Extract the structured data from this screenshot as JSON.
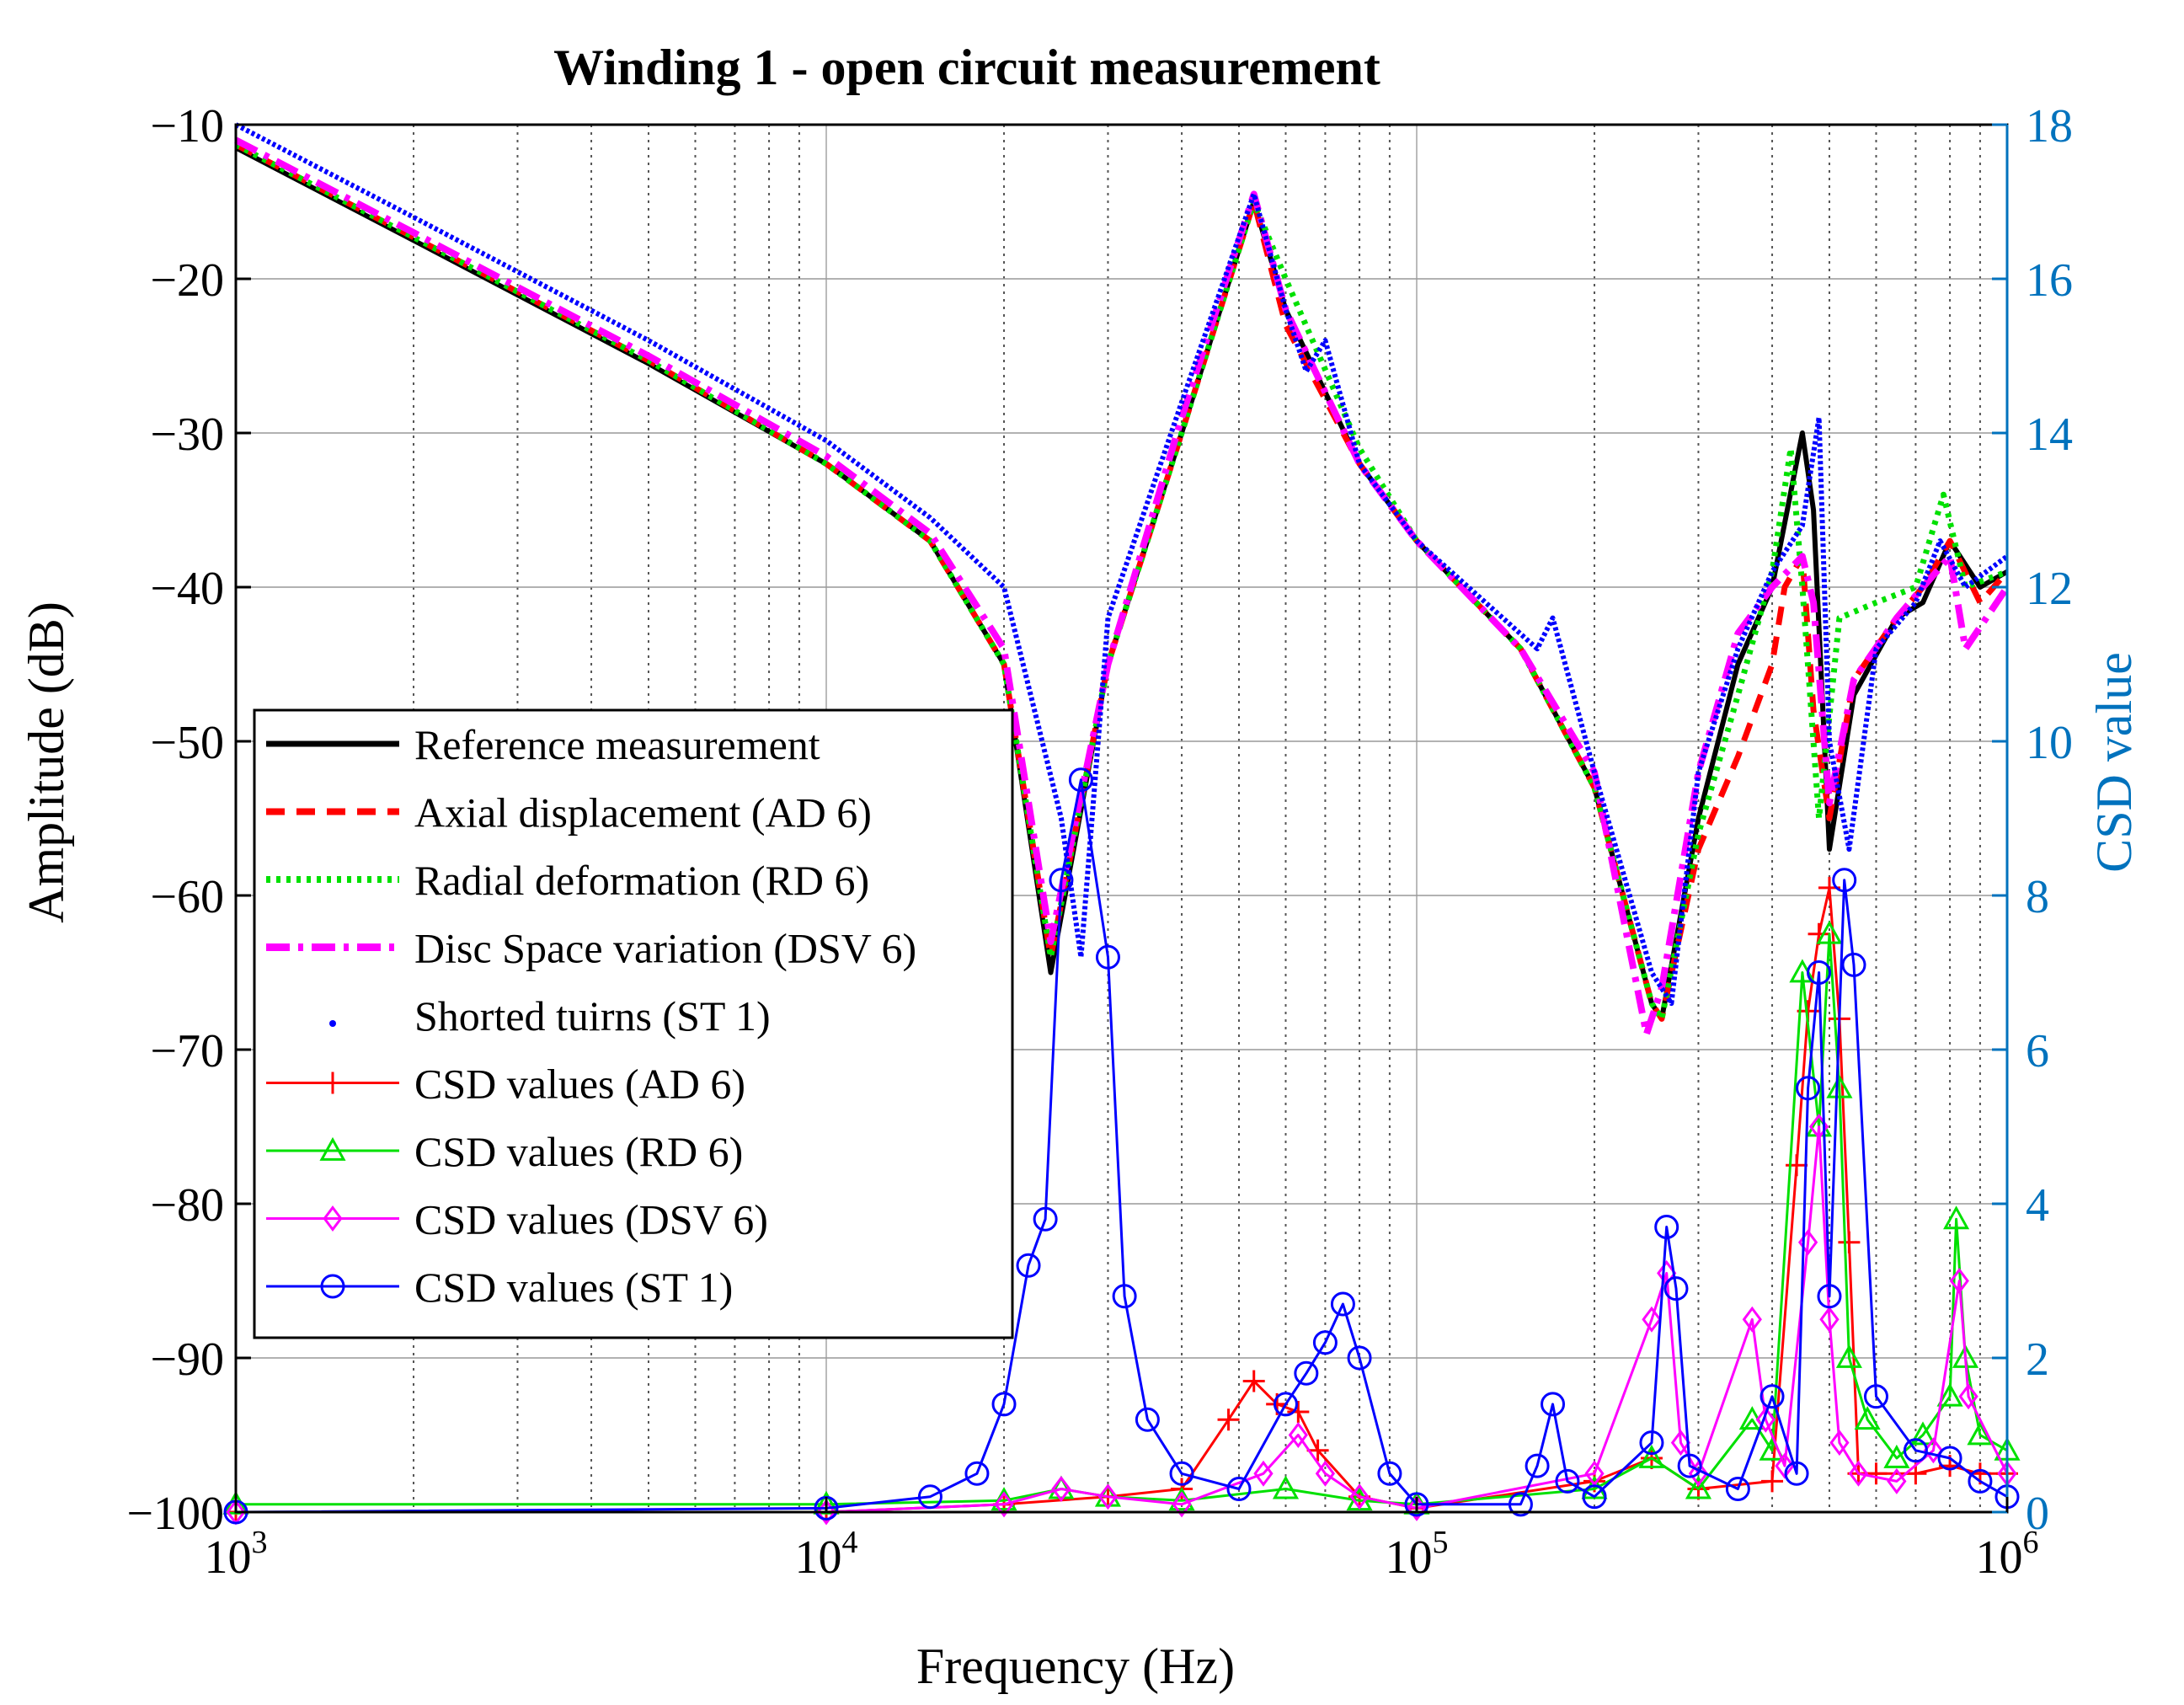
{
  "chart_data": {
    "type": "line",
    "title": "Winding 1 - open circuit measurement",
    "xlabel": "Frequency (Hz)",
    "ylabel_left": "Amplitude (dB)",
    "ylabel_right": "CSD value",
    "xscale": "log",
    "xlim": [
      1000,
      1000000
    ],
    "ylim_left": [
      -100,
      -10
    ],
    "ylim_right": [
      0,
      18
    ],
    "x_ticks": [
      {
        "value": 1000,
        "base": "10",
        "exp": "3"
      },
      {
        "value": 10000,
        "base": "10",
        "exp": "4"
      },
      {
        "value": 100000,
        "base": "10",
        "exp": "5"
      },
      {
        "value": 1000000,
        "base": "10",
        "exp": "6"
      }
    ],
    "y_ticks_left": [
      "−10",
      "−20",
      "−30",
      "−40",
      "−50",
      "−60",
      "−70",
      "−80",
      "−90",
      "−100"
    ],
    "y_tick_values_left": [
      -10,
      -20,
      -30,
      -40,
      -50,
      -60,
      -70,
      -80,
      -90,
      -100
    ],
    "y_ticks_right": [
      "18",
      "16",
      "14",
      "12",
      "10",
      "8",
      "6",
      "4",
      "2",
      "0"
    ],
    "y_tick_values_right": [
      18,
      16,
      14,
      12,
      10,
      8,
      6,
      4,
      2,
      0
    ],
    "colors": {
      "black": "#000000",
      "red": "#ff0000",
      "green": "#00e000",
      "magenta": "#ff00ff",
      "blue": "#0000ff",
      "right_axis": "#0072bd"
    },
    "legend": {
      "position": "lower-left",
      "entries": [
        "Reference measurement",
        "Axial displacement (AD 6)",
        "Radial deformation (RD 6)",
        "Disc Space variation (DSV 6)",
        "Shorted tuirns (ST 1)",
        "CSD values (AD 6)",
        "CSD values (RD 6)",
        "CSD values (DSV 6)",
        "CSD values (ST 1)"
      ]
    },
    "series": [
      {
        "name": "Reference measurement",
        "axis": "left",
        "style": "solid",
        "x": [
          1000,
          2000,
          5000,
          10000,
          15000,
          20000,
          24000,
          30000,
          40000,
          53000,
          60000,
          80000,
          100000,
          150000,
          200000,
          250000,
          260000,
          300000,
          350000,
          400000,
          450000,
          470000,
          500000,
          550000,
          650000,
          720000,
          800000,
          900000,
          1000000
        ],
        "y": [
          -11.5,
          -17.5,
          -25.5,
          -32,
          -37,
          -45,
          -65,
          -45,
          -30,
          -15,
          -22,
          -32,
          -37,
          -44,
          -53,
          -67,
          -68,
          -55,
          -45,
          -40,
          -30,
          -35,
          -57,
          -47,
          -42,
          -41,
          -37,
          -40,
          -39
        ]
      },
      {
        "name": "Axial displacement (AD 6)",
        "axis": "left",
        "style": "dashed",
        "x": [
          1000,
          2000,
          5000,
          10000,
          15000,
          20000,
          24000,
          30000,
          40000,
          53000,
          60000,
          80000,
          100000,
          150000,
          200000,
          250000,
          260000,
          300000,
          350000,
          400000,
          420000,
          450000,
          470000,
          500000,
          550000,
          650000,
          720000,
          800000,
          900000,
          1000000
        ],
        "y": [
          -11.3,
          -17.3,
          -25.3,
          -32,
          -37,
          -45,
          -64,
          -45,
          -30,
          -15,
          -23,
          -32,
          -37,
          -44,
          -53,
          -67,
          -68,
          -57,
          -51,
          -45,
          -40,
          -38,
          -48,
          -55,
          -46,
          -42,
          -40,
          -37,
          -41,
          -39
        ]
      },
      {
        "name": "Radial deformation (RD 6)",
        "axis": "left",
        "style": "dotted",
        "x": [
          1000,
          2000,
          5000,
          10000,
          15000,
          20000,
          24000,
          30000,
          40000,
          53000,
          60000,
          80000,
          100000,
          150000,
          200000,
          250000,
          260000,
          300000,
          350000,
          400000,
          430000,
          450000,
          480000,
          520000,
          600000,
          700000,
          780000,
          850000,
          1000000
        ],
        "y": [
          -11.3,
          -17.3,
          -25.3,
          -32,
          -37,
          -45,
          -64,
          -45,
          -30,
          -15,
          -20,
          -31,
          -37,
          -44,
          -53,
          -67,
          -68,
          -56,
          -47,
          -39,
          -31,
          -40,
          -55,
          -42,
          -41,
          -40,
          -34,
          -40,
          -39
        ]
      },
      {
        "name": "Disc Space variation (DSV 6)",
        "axis": "left",
        "style": "dashdot",
        "x": [
          1000,
          2000,
          5000,
          10000,
          15000,
          20000,
          24000,
          30000,
          40000,
          53000,
          60000,
          80000,
          100000,
          150000,
          200000,
          245000,
          260000,
          300000,
          350000,
          400000,
          450000,
          470000,
          500000,
          550000,
          650000,
          720000,
          800000,
          850000,
          1000000
        ],
        "y": [
          -11,
          -17,
          -25,
          -31.5,
          -36.5,
          -44,
          -63,
          -45,
          -29,
          -14.5,
          -22,
          -32,
          -37,
          -44,
          -52,
          -69,
          -66,
          -52,
          -43,
          -40,
          -38,
          -41,
          -54,
          -46,
          -42,
          -40,
          -38,
          -44,
          -40
        ]
      },
      {
        "name": "Shorted tuirns (ST 1)",
        "axis": "left",
        "style": "points",
        "x": [
          1000,
          2000,
          5000,
          10000,
          15000,
          20000,
          25000,
          27000,
          30000,
          40000,
          53000,
          60000,
          65000,
          70000,
          80000,
          100000,
          160000,
          170000,
          200000,
          250000,
          270000,
          300000,
          350000,
          400000,
          450000,
          480000,
          500000,
          540000,
          600000,
          700000,
          770000,
          850000,
          1000000
        ],
        "y": [
          -10,
          -16,
          -24,
          -30.5,
          -35.5,
          -40,
          -55,
          -64,
          -42,
          -28,
          -14.5,
          -22,
          -26,
          -24,
          -32,
          -37,
          -44,
          -42,
          -52,
          -65,
          -67,
          -52,
          -44,
          -39,
          -36,
          -29,
          -50,
          -57,
          -44,
          -41,
          -37,
          -40,
          -38
        ]
      },
      {
        "name": "CSD values (AD 6)",
        "axis": "right",
        "marker": "plus",
        "x": [
          1000,
          10000,
          20000,
          30000,
          40000,
          48000,
          53000,
          58000,
          63000,
          68000,
          80000,
          100000,
          200000,
          250000,
          300000,
          400000,
          440000,
          460000,
          480000,
          500000,
          520000,
          540000,
          560000,
          600000,
          700000,
          800000,
          900000,
          1000000
        ],
        "y": [
          0,
          0,
          0.1,
          0.2,
          0.3,
          1.2,
          1.7,
          1.4,
          1.3,
          0.8,
          0.2,
          0.05,
          0.4,
          0.7,
          0.3,
          0.4,
          4.5,
          6.5,
          7.5,
          8.1,
          6.4,
          3.5,
          0.5,
          0.5,
          0.5,
          0.6,
          0.5,
          0.5
        ]
      },
      {
        "name": "CSD values (RD 6)",
        "axis": "right",
        "marker": "triangle",
        "x": [
          1000,
          10000,
          20000,
          25000,
          30000,
          40000,
          60000,
          80000,
          100000,
          200000,
          250000,
          300000,
          370000,
          400000,
          450000,
          480000,
          500000,
          520000,
          540000,
          580000,
          650000,
          720000,
          800000,
          820000,
          850000,
          900000,
          1000000
        ],
        "y": [
          0.1,
          0.1,
          0.15,
          0.3,
          0.2,
          0.15,
          0.3,
          0.15,
          0.1,
          0.3,
          0.7,
          0.3,
          1.2,
          0.8,
          7.0,
          5.0,
          7.5,
          5.5,
          2.0,
          1.2,
          0.7,
          1.0,
          1.5,
          3.8,
          2.0,
          1.0,
          0.8
        ]
      },
      {
        "name": "CSD values (DSV 6)",
        "axis": "right",
        "marker": "diamond",
        "x": [
          1000,
          10000,
          20000,
          25000,
          30000,
          40000,
          55000,
          63000,
          70000,
          80000,
          100000,
          200000,
          250000,
          265000,
          280000,
          300000,
          370000,
          390000,
          420000,
          460000,
          480000,
          500000,
          520000,
          560000,
          650000,
          750000,
          830000,
          860000,
          1000000
        ],
        "y": [
          0,
          0,
          0.1,
          0.3,
          0.2,
          0.1,
          0.5,
          1.0,
          0.5,
          0.2,
          0.05,
          0.5,
          2.5,
          3.1,
          0.9,
          0.5,
          2.5,
          1.2,
          0.6,
          3.5,
          5.0,
          2.5,
          0.9,
          0.5,
          0.4,
          0.8,
          3.0,
          1.5,
          0.5
        ]
      },
      {
        "name": "CSD values (ST 1)",
        "axis": "right",
        "marker": "circle",
        "x": [
          1000,
          10000,
          15000,
          18000,
          20000,
          22000,
          23500,
          25000,
          27000,
          30000,
          32000,
          35000,
          40000,
          50000,
          60000,
          65000,
          70000,
          75000,
          80000,
          90000,
          100000,
          150000,
          160000,
          170000,
          180000,
          200000,
          250000,
          265000,
          275000,
          290000,
          350000,
          400000,
          440000,
          460000,
          480000,
          500000,
          530000,
          550000,
          600000,
          700000,
          800000,
          900000,
          1000000
        ],
        "y": [
          0,
          0.05,
          0.2,
          0.5,
          1.4,
          3.2,
          3.8,
          8.2,
          9.5,
          7.2,
          2.8,
          1.2,
          0.5,
          0.3,
          1.4,
          1.8,
          2.2,
          2.7,
          2.0,
          0.5,
          0.1,
          0.1,
          0.6,
          1.4,
          0.4,
          0.2,
          0.9,
          3.7,
          2.9,
          0.6,
          0.3,
          1.5,
          0.5,
          5.5,
          7.0,
          2.8,
          8.2,
          7.1,
          1.5,
          0.8,
          0.7,
          0.4,
          0.2
        ]
      }
    ]
  }
}
